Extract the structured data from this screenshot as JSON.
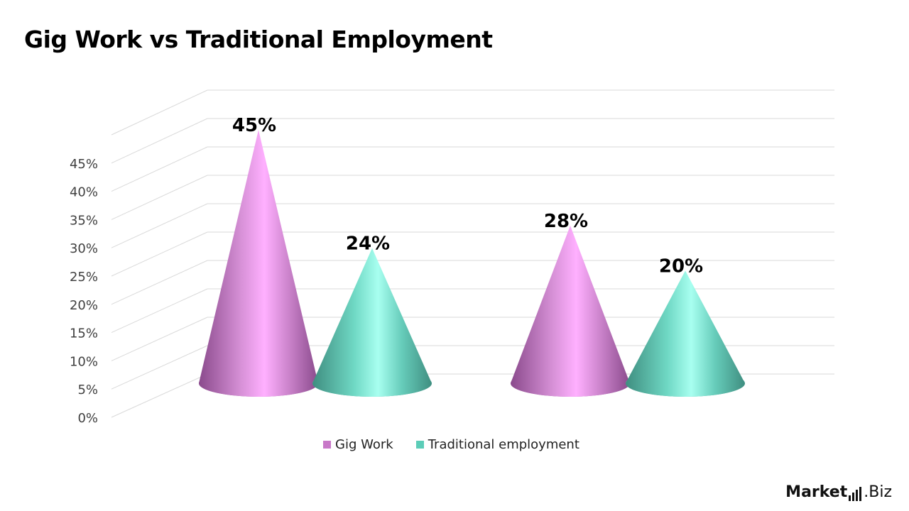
{
  "title": "Gig Work vs Traditional Employment",
  "brand": {
    "name": "Market",
    "suffix": ".Biz"
  },
  "colors": {
    "gig": "#c878c8",
    "traditional": "#5ccdb8",
    "grid": "#d9d9d9",
    "axis_text": "#404040"
  },
  "chart_data": {
    "type": "bar",
    "style": "3d-cone",
    "categories": [
      "",
      ""
    ],
    "series": [
      {
        "name": "Gig Work",
        "values": [
          45,
          28
        ]
      },
      {
        "name": "Traditional employment",
        "values": [
          24,
          20
        ]
      }
    ],
    "data_labels": [
      [
        "45%",
        "28%"
      ],
      [
        "24%",
        "20%"
      ]
    ],
    "ylim": [
      0,
      45
    ],
    "yticks": [
      "0%",
      "5%",
      "10%",
      "15%",
      "20%",
      "25%",
      "30%",
      "35%",
      "40%",
      "45%"
    ],
    "grid": true,
    "legend": "bottom"
  }
}
